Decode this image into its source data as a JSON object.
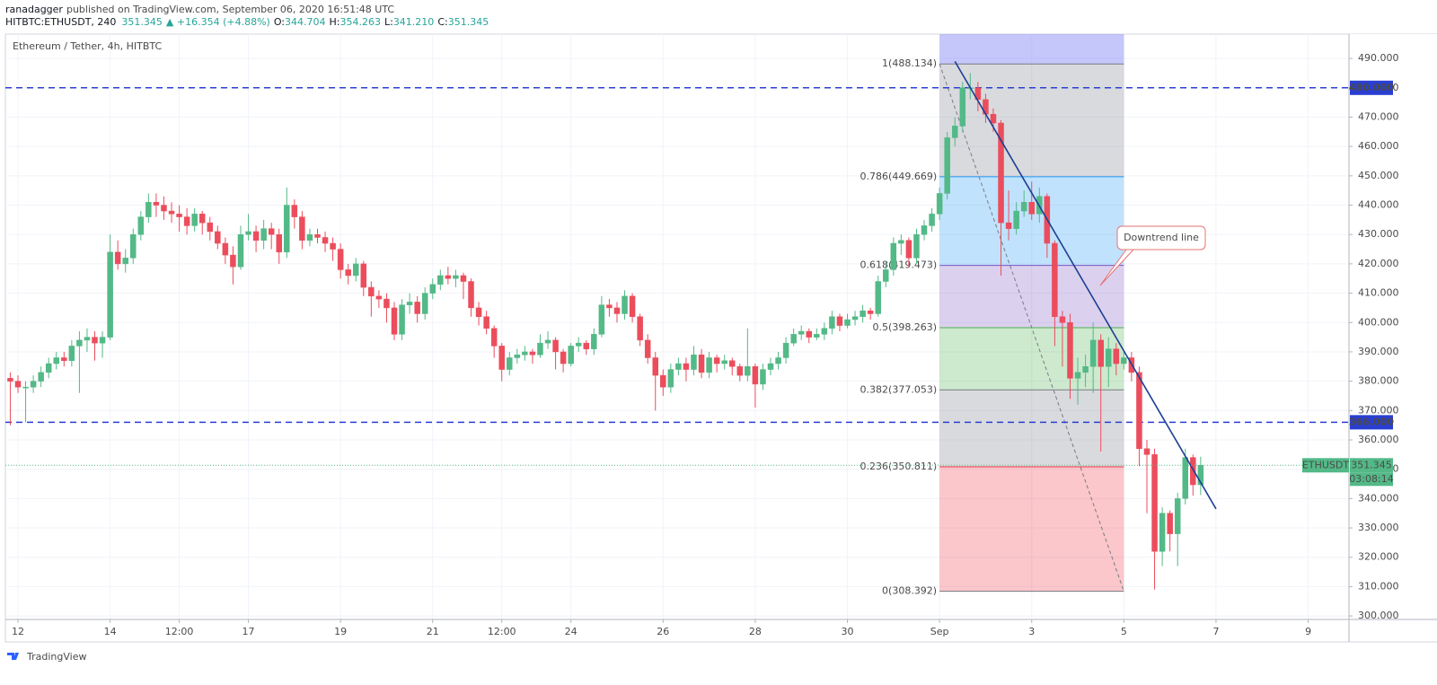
{
  "header": {
    "author": "ranadagger",
    "published": "published on TradingView.com, September 06, 2020 16:51:48 UTC",
    "symbol": "HITBTC:ETHUSDT, 240",
    "price": "351.345",
    "change": "▲ +16.354 (+4.88%)",
    "ohlc": [
      {
        "label": "O:",
        "value": "344.704"
      },
      {
        "label": "H:",
        "value": "354.263"
      },
      {
        "label": "L:",
        "value": "341.210"
      },
      {
        "label": "C:",
        "value": "351.345"
      }
    ]
  },
  "footer": {
    "brand": "TradingView"
  },
  "chart_data": {
    "type": "candlestick",
    "title": "Ethereum / Tether, 4h, HITBTC",
    "x": [
      "2020-08-11 20:00",
      "2020-08-12 00:00",
      "2020-08-12 04:00",
      "2020-08-12 08:00",
      "2020-08-12 12:00",
      "2020-08-12 16:00",
      "2020-08-12 20:00",
      "2020-08-13 00:00",
      "2020-08-13 04:00",
      "2020-08-13 08:00",
      "2020-08-13 12:00",
      "2020-08-13 16:00",
      "2020-08-13 20:00",
      "2020-08-14 00:00",
      "2020-08-14 04:00",
      "2020-08-14 08:00",
      "2020-08-14 12:00",
      "2020-08-14 16:00",
      "2020-08-14 20:00",
      "2020-08-15 00:00",
      "2020-08-15 04:00",
      "2020-08-15 08:00",
      "2020-08-15 12:00",
      "2020-08-15 16:00",
      "2020-08-15 20:00",
      "2020-08-16 00:00",
      "2020-08-16 04:00",
      "2020-08-16 08:00",
      "2020-08-16 12:00",
      "2020-08-16 16:00",
      "2020-08-16 20:00",
      "2020-08-17 00:00",
      "2020-08-17 04:00",
      "2020-08-17 08:00",
      "2020-08-17 12:00",
      "2020-08-17 16:00",
      "2020-08-17 20:00",
      "2020-08-18 00:00",
      "2020-08-18 04:00",
      "2020-08-18 08:00",
      "2020-08-18 12:00",
      "2020-08-18 16:00",
      "2020-08-18 20:00",
      "2020-08-19 00:00",
      "2020-08-19 04:00",
      "2020-08-19 08:00",
      "2020-08-19 12:00",
      "2020-08-19 16:00",
      "2020-08-19 20:00",
      "2020-08-20 00:00",
      "2020-08-20 04:00",
      "2020-08-20 08:00",
      "2020-08-20 12:00",
      "2020-08-20 16:00",
      "2020-08-20 20:00",
      "2020-08-21 00:00",
      "2020-08-21 04:00",
      "2020-08-21 08:00",
      "2020-08-21 12:00",
      "2020-08-21 16:00",
      "2020-08-21 20:00",
      "2020-08-22 00:00",
      "2020-08-22 04:00",
      "2020-08-22 08:00",
      "2020-08-22 12:00",
      "2020-08-22 16:00",
      "2020-08-22 20:00",
      "2020-08-23 00:00",
      "2020-08-23 04:00",
      "2020-08-23 08:00",
      "2020-08-23 12:00",
      "2020-08-23 16:00",
      "2020-08-23 20:00",
      "2020-08-24 00:00",
      "2020-08-24 04:00",
      "2020-08-24 08:00",
      "2020-08-24 12:00",
      "2020-08-24 16:00",
      "2020-08-24 20:00",
      "2020-08-25 00:00",
      "2020-08-25 04:00",
      "2020-08-25 08:00",
      "2020-08-25 12:00",
      "2020-08-25 16:00",
      "2020-08-25 20:00",
      "2020-08-26 00:00",
      "2020-08-26 04:00",
      "2020-08-26 08:00",
      "2020-08-26 12:00",
      "2020-08-26 16:00",
      "2020-08-26 20:00",
      "2020-08-27 00:00",
      "2020-08-27 04:00",
      "2020-08-27 08:00",
      "2020-08-27 12:00",
      "2020-08-27 16:00",
      "2020-08-27 20:00",
      "2020-08-28 00:00",
      "2020-08-28 04:00",
      "2020-08-28 08:00",
      "2020-08-28 12:00",
      "2020-08-28 16:00",
      "2020-08-28 20:00",
      "2020-08-29 00:00",
      "2020-08-29 04:00",
      "2020-08-29 08:00",
      "2020-08-29 12:00",
      "2020-08-29 16:00",
      "2020-08-29 20:00",
      "2020-08-30 00:00",
      "2020-08-30 04:00",
      "2020-08-30 08:00",
      "2020-08-30 12:00",
      "2020-08-30 16:00",
      "2020-08-30 20:00",
      "2020-08-31 00:00",
      "2020-08-31 04:00",
      "2020-08-31 08:00",
      "2020-08-31 12:00",
      "2020-08-31 16:00",
      "2020-08-31 20:00",
      "2020-09-01 00:00",
      "2020-09-01 04:00",
      "2020-09-01 08:00",
      "2020-09-01 12:00",
      "2020-09-01 16:00",
      "2020-09-01 20:00",
      "2020-09-02 00:00",
      "2020-09-02 04:00",
      "2020-09-02 08:00",
      "2020-09-02 12:00",
      "2020-09-02 16:00",
      "2020-09-02 20:00",
      "2020-09-03 00:00",
      "2020-09-03 04:00",
      "2020-09-03 08:00",
      "2020-09-03 12:00",
      "2020-09-03 16:00",
      "2020-09-03 20:00",
      "2020-09-04 00:00",
      "2020-09-04 04:00",
      "2020-09-04 08:00",
      "2020-09-04 12:00",
      "2020-09-04 16:00",
      "2020-09-04 20:00",
      "2020-09-05 00:00",
      "2020-09-05 04:00",
      "2020-09-05 08:00",
      "2020-09-05 12:00",
      "2020-09-05 16:00",
      "2020-09-05 20:00",
      "2020-09-06 00:00",
      "2020-09-06 04:00",
      "2020-09-06 08:00",
      "2020-09-06 12:00",
      "2020-09-06 16:00"
    ],
    "ohlc": [
      [
        381,
        383,
        365,
        380
      ],
      [
        380,
        382,
        376,
        378
      ],
      [
        378,
        380,
        366,
        378
      ],
      [
        378,
        382,
        376,
        380
      ],
      [
        380,
        385,
        378,
        383
      ],
      [
        383,
        388,
        381,
        386
      ],
      [
        386,
        390,
        384,
        388
      ],
      [
        388,
        390,
        385,
        387
      ],
      [
        387,
        394,
        385,
        392
      ],
      [
        392,
        397,
        376,
        394
      ],
      [
        394,
        398,
        390,
        395
      ],
      [
        395,
        397,
        387,
        393
      ],
      [
        393,
        397,
        388,
        395
      ],
      [
        395,
        430,
        394,
        424
      ],
      [
        424,
        428,
        418,
        420
      ],
      [
        420,
        425,
        417,
        422
      ],
      [
        422,
        432,
        420,
        430
      ],
      [
        430,
        438,
        428,
        436
      ],
      [
        436,
        444,
        434,
        441
      ],
      [
        441,
        444,
        436,
        440
      ],
      [
        440,
        443,
        435,
        438
      ],
      [
        438,
        441,
        434,
        437
      ],
      [
        437,
        440,
        431,
        436
      ],
      [
        436,
        439,
        430,
        433
      ],
      [
        433,
        439,
        431,
        437
      ],
      [
        437,
        438,
        430,
        434
      ],
      [
        434,
        436,
        428,
        431
      ],
      [
        431,
        433,
        425,
        427
      ],
      [
        427,
        429,
        420,
        423
      ],
      [
        423,
        426,
        413,
        419
      ],
      [
        419,
        433,
        418,
        430
      ],
      [
        430,
        437,
        428,
        431
      ],
      [
        431,
        433,
        424,
        428
      ],
      [
        428,
        435,
        425,
        432
      ],
      [
        432,
        434,
        425,
        430
      ],
      [
        430,
        432,
        420,
        424
      ],
      [
        424,
        446,
        422,
        440
      ],
      [
        440,
        442,
        432,
        436
      ],
      [
        436,
        438,
        425,
        428
      ],
      [
        428,
        432,
        426,
        430
      ],
      [
        430,
        432,
        427,
        429
      ],
      [
        429,
        431,
        424,
        427
      ],
      [
        427,
        429,
        421,
        425
      ],
      [
        425,
        427,
        415,
        418
      ],
      [
        418,
        420,
        413,
        416
      ],
      [
        416,
        422,
        414,
        420
      ],
      [
        420,
        421,
        409,
        412
      ],
      [
        412,
        414,
        402,
        409
      ],
      [
        409,
        411,
        405,
        408
      ],
      [
        408,
        410,
        400,
        405
      ],
      [
        405,
        407,
        394,
        396
      ],
      [
        396,
        408,
        394,
        406
      ],
      [
        406,
        410,
        403,
        407
      ],
      [
        407,
        409,
        400,
        403
      ],
      [
        403,
        412,
        401,
        410
      ],
      [
        410,
        415,
        408,
        413
      ],
      [
        413,
        418,
        411,
        416
      ],
      [
        416,
        419,
        413,
        415
      ],
      [
        415,
        418,
        412,
        416
      ],
      [
        416,
        417,
        408,
        414
      ],
      [
        414,
        415,
        402,
        405
      ],
      [
        405,
        407,
        399,
        402
      ],
      [
        402,
        404,
        396,
        398
      ],
      [
        398,
        399,
        388,
        392
      ],
      [
        392,
        393,
        380,
        384
      ],
      [
        384,
        390,
        382,
        388
      ],
      [
        388,
        391,
        386,
        389
      ],
      [
        389,
        392,
        387,
        390
      ],
      [
        390,
        391,
        386,
        389
      ],
      [
        389,
        396,
        388,
        393
      ],
      [
        393,
        397,
        391,
        394
      ],
      [
        394,
        395,
        384,
        390
      ],
      [
        390,
        391,
        383,
        386
      ],
      [
        386,
        393,
        385,
        392
      ],
      [
        392,
        395,
        390,
        393
      ],
      [
        393,
        394,
        389,
        391
      ],
      [
        391,
        398,
        389,
        396
      ],
      [
        396,
        409,
        395,
        406
      ],
      [
        406,
        408,
        402,
        405
      ],
      [
        405,
        407,
        400,
        403
      ],
      [
        403,
        411,
        401,
        409
      ],
      [
        409,
        410,
        400,
        402
      ],
      [
        402,
        403,
        392,
        394
      ],
      [
        394,
        396,
        386,
        388
      ],
      [
        388,
        390,
        370,
        382
      ],
      [
        382,
        384,
        375,
        378
      ],
      [
        378,
        386,
        376,
        384
      ],
      [
        384,
        388,
        382,
        386
      ],
      [
        386,
        388,
        380,
        384
      ],
      [
        384,
        392,
        382,
        389
      ],
      [
        389,
        391,
        381,
        383
      ],
      [
        383,
        390,
        381,
        388
      ],
      [
        388,
        389,
        383,
        386
      ],
      [
        386,
        389,
        384,
        387
      ],
      [
        387,
        388,
        382,
        385
      ],
      [
        385,
        386,
        380,
        382
      ],
      [
        382,
        398,
        380,
        385
      ],
      [
        385,
        386,
        371,
        379
      ],
      [
        379,
        386,
        377,
        384
      ],
      [
        384,
        388,
        382,
        386
      ],
      [
        386,
        390,
        384,
        388
      ],
      [
        388,
        395,
        386,
        393
      ],
      [
        393,
        398,
        392,
        396
      ],
      [
        396,
        399,
        394,
        397
      ],
      [
        397,
        398,
        393,
        395
      ],
      [
        395,
        398,
        394,
        396
      ],
      [
        396,
        400,
        394,
        398
      ],
      [
        398,
        404,
        396,
        402
      ],
      [
        402,
        403,
        397,
        399
      ],
      [
        399,
        403,
        398,
        401
      ],
      [
        401,
        404,
        399,
        402
      ],
      [
        402,
        406,
        400,
        404
      ],
      [
        404,
        405,
        401,
        403
      ],
      [
        403,
        416,
        402,
        414
      ],
      [
        414,
        421,
        412,
        418
      ],
      [
        418,
        429,
        416,
        427
      ],
      [
        427,
        430,
        423,
        428
      ],
      [
        428,
        429,
        419,
        422
      ],
      [
        422,
        432,
        420,
        430
      ],
      [
        430,
        435,
        428,
        433
      ],
      [
        433,
        439,
        431,
        437
      ],
      [
        437,
        446,
        435,
        444
      ],
      [
        444,
        465,
        442,
        463
      ],
      [
        463,
        470,
        460,
        467
      ],
      [
        467,
        482,
        465,
        480
      ],
      [
        480,
        485,
        476,
        480
      ],
      [
        480,
        482,
        472,
        476
      ],
      [
        476,
        478,
        468,
        471
      ],
      [
        471,
        473,
        465,
        468
      ],
      [
        468,
        469,
        416,
        434
      ],
      [
        434,
        445,
        428,
        432
      ],
      [
        432,
        441,
        430,
        438
      ],
      [
        438,
        445,
        436,
        441
      ],
      [
        441,
        448,
        435,
        437
      ],
      [
        437,
        446,
        434,
        443
      ],
      [
        443,
        444,
        422,
        427
      ],
      [
        427,
        428,
        392,
        402
      ],
      [
        402,
        404,
        385,
        400
      ],
      [
        400,
        403,
        374,
        381
      ],
      [
        381,
        388,
        372,
        383
      ],
      [
        383,
        389,
        378,
        385
      ],
      [
        385,
        400,
        376,
        394
      ],
      [
        394,
        396,
        356,
        385
      ],
      [
        385,
        395,
        378,
        391
      ],
      [
        391,
        393,
        382,
        386
      ],
      [
        386,
        390,
        384,
        388
      ],
      [
        388,
        390,
        380,
        383
      ],
      [
        383,
        385,
        351,
        357
      ],
      [
        357,
        360,
        335,
        355
      ],
      [
        355,
        357,
        309,
        322
      ],
      [
        322,
        337,
        317,
        335
      ],
      [
        335,
        336,
        322,
        328
      ],
      [
        328,
        342,
        317,
        340
      ],
      [
        340,
        357,
        338,
        354
      ],
      [
        354,
        355,
        341,
        344.704
      ],
      [
        344.704,
        354.263,
        341.21,
        351.345
      ]
    ],
    "up_color": "#53b987",
    "down_color": "#eb4d5c",
    "xlim": [
      "2020-08-11 17:27",
      "2020-09-09 21:15"
    ],
    "ylim": [
      298.8,
      498.3
    ],
    "xticks": [
      {
        "value": "2020-08-12 00:00",
        "label": "12"
      },
      {
        "value": "2020-08-14 00:00",
        "label": "14"
      },
      {
        "value": "2020-08-15 12:00",
        "label": "12:00"
      },
      {
        "value": "2020-08-17 00:00",
        "label": "17"
      },
      {
        "value": "2020-08-19 00:00",
        "label": "19"
      },
      {
        "value": "2020-08-21 00:00",
        "label": "21"
      },
      {
        "value": "2020-08-22 12:00",
        "label": "12:00"
      },
      {
        "value": "2020-08-24 00:00",
        "label": "24"
      },
      {
        "value": "2020-08-26 00:00",
        "label": "26"
      },
      {
        "value": "2020-08-28 00:00",
        "label": "28"
      },
      {
        "value": "2020-08-30 00:00",
        "label": "30"
      },
      {
        "value": "2020-09-01 00:00",
        "label": "Sep"
      },
      {
        "value": "2020-09-03 00:00",
        "label": "3"
      },
      {
        "value": "2020-09-05 00:00",
        "label": "5"
      },
      {
        "value": "2020-09-07 00:00",
        "label": "7"
      },
      {
        "value": "2020-09-09 00:00",
        "label": "9"
      }
    ],
    "yticks": [
      {
        "value": 300,
        "label": "300.000"
      },
      {
        "value": 310,
        "label": "310.000"
      },
      {
        "value": 320,
        "label": "320.000"
      },
      {
        "value": 330,
        "label": "330.000"
      },
      {
        "value": 340,
        "label": "340.000"
      },
      {
        "value": 350,
        "label": "350.000"
      },
      {
        "value": 360,
        "label": "360.000"
      },
      {
        "value": 370,
        "label": "370.000"
      },
      {
        "value": 380,
        "label": "380.000"
      },
      {
        "value": 390,
        "label": "390.000"
      },
      {
        "value": 400,
        "label": "400.000"
      },
      {
        "value": 410,
        "label": "410.000"
      },
      {
        "value": 420,
        "label": "420.000"
      },
      {
        "value": 430,
        "label": "430.000"
      },
      {
        "value": 440,
        "label": "440.000"
      },
      {
        "value": 450,
        "label": "450.000"
      },
      {
        "value": 460,
        "label": "460.000"
      },
      {
        "value": 470,
        "label": "470.000"
      },
      {
        "value": 480,
        "label": "480.000"
      },
      {
        "value": 490,
        "label": "490.000"
      }
    ],
    "grid": true,
    "horizontal_levels": [
      {
        "value": 480,
        "label": "480.000",
        "color": "#2a3fd1"
      },
      {
        "value": 366,
        "label": "366.000",
        "color": "#2a3fd1"
      }
    ],
    "fib": {
      "start": "2020-09-01 00:00",
      "end": "2020-09-05 00:00",
      "levels": [
        {
          "value": 488.134,
          "label": "1(488.134)",
          "color": "#787b86"
        },
        {
          "value": 449.669,
          "label": "0.786(449.669)",
          "color": "#2196f3"
        },
        {
          "value": 419.473,
          "label": "0.618(419.473)",
          "color": "#7e57c2"
        },
        {
          "value": 398.263,
          "label": "0.5(398.263)",
          "color": "#4caf50"
        },
        {
          "value": 377.053,
          "label": "0.382(377.053)",
          "color": "#787b86"
        },
        {
          "value": 350.811,
          "label": "0.236(350.811)",
          "color": "#f23645"
        },
        {
          "value": 308.392,
          "label": "0(308.392)",
          "color": "#787b86"
        }
      ]
    },
    "trendline": {
      "start": [
        "2020-09-01 08:00",
        489
      ],
      "end": [
        "2020-09-07 00:00",
        336.5
      ],
      "color": "#1c3f94",
      "label": "Downtrend line"
    },
    "last_price": {
      "symbol": "ETHUSDT",
      "value": 351.345,
      "label": "351.345",
      "countdown": "03:08:14",
      "color": "#53b987"
    }
  }
}
